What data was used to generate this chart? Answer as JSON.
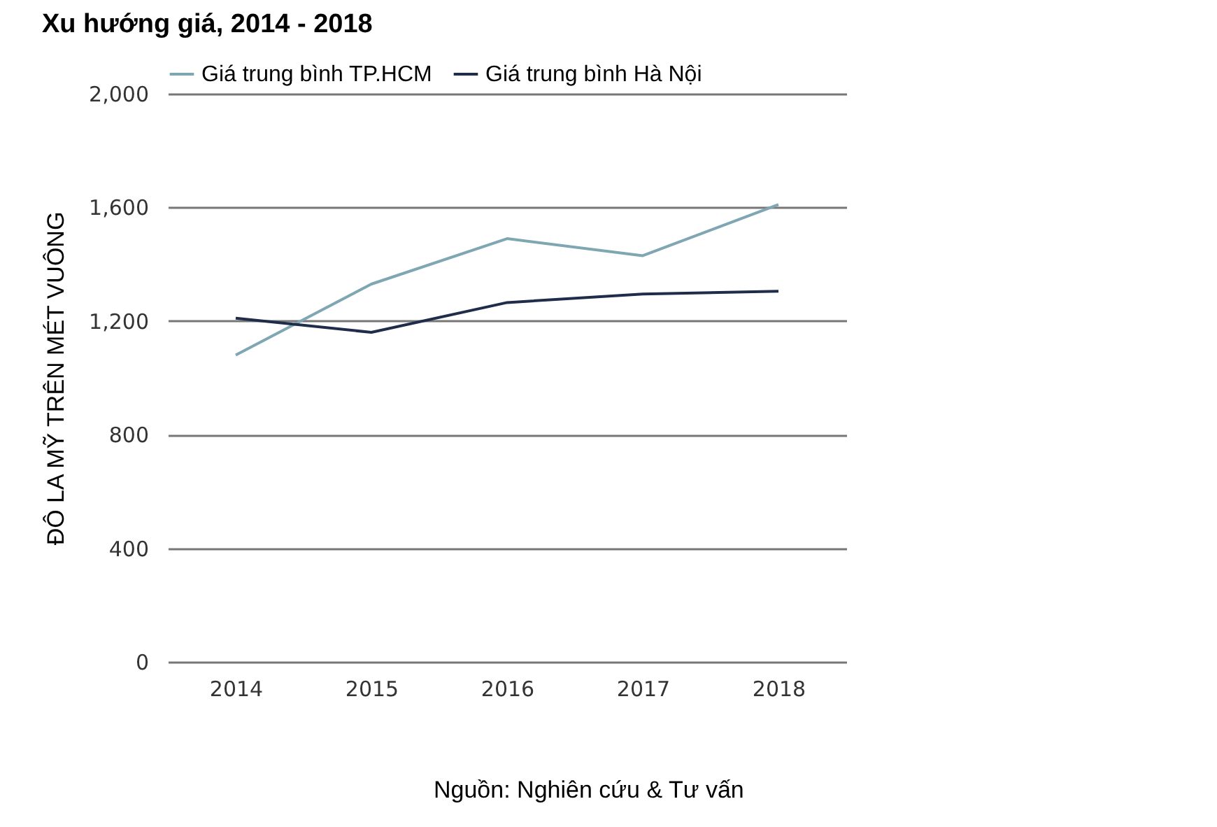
{
  "chart_data": {
    "type": "line",
    "title": "Xu hướng giá, 2014 - 2018",
    "ylabel": "ĐÔ LA MỸ TRÊN MÉT VUÔNG",
    "categories": [
      "2014",
      "2015",
      "2016",
      "2017",
      "2018"
    ],
    "series": [
      {
        "name": "Giá trung bình TP.HCM",
        "color": "#7fa6b3",
        "values": [
          1080,
          1330,
          1490,
          1430,
          1610
        ]
      },
      {
        "name": "Giá trung bình Hà Nội",
        "color": "#1f2d4a",
        "values": [
          1210,
          1160,
          1265,
          1295,
          1305
        ]
      }
    ],
    "ylim": [
      0,
      2000
    ],
    "yticks": [
      0,
      400,
      800,
      {
        "value": 1200,
        "label": "1,200"
      },
      {
        "value": 1600,
        "label": "1,600"
      },
      {
        "value": 2000,
        "label": "2,000"
      }
    ],
    "grid": "y",
    "legend": "top left",
    "marker": "none",
    "annotations": [
      "Nguồn: Nghiên cứu & Tư vấn"
    ]
  }
}
